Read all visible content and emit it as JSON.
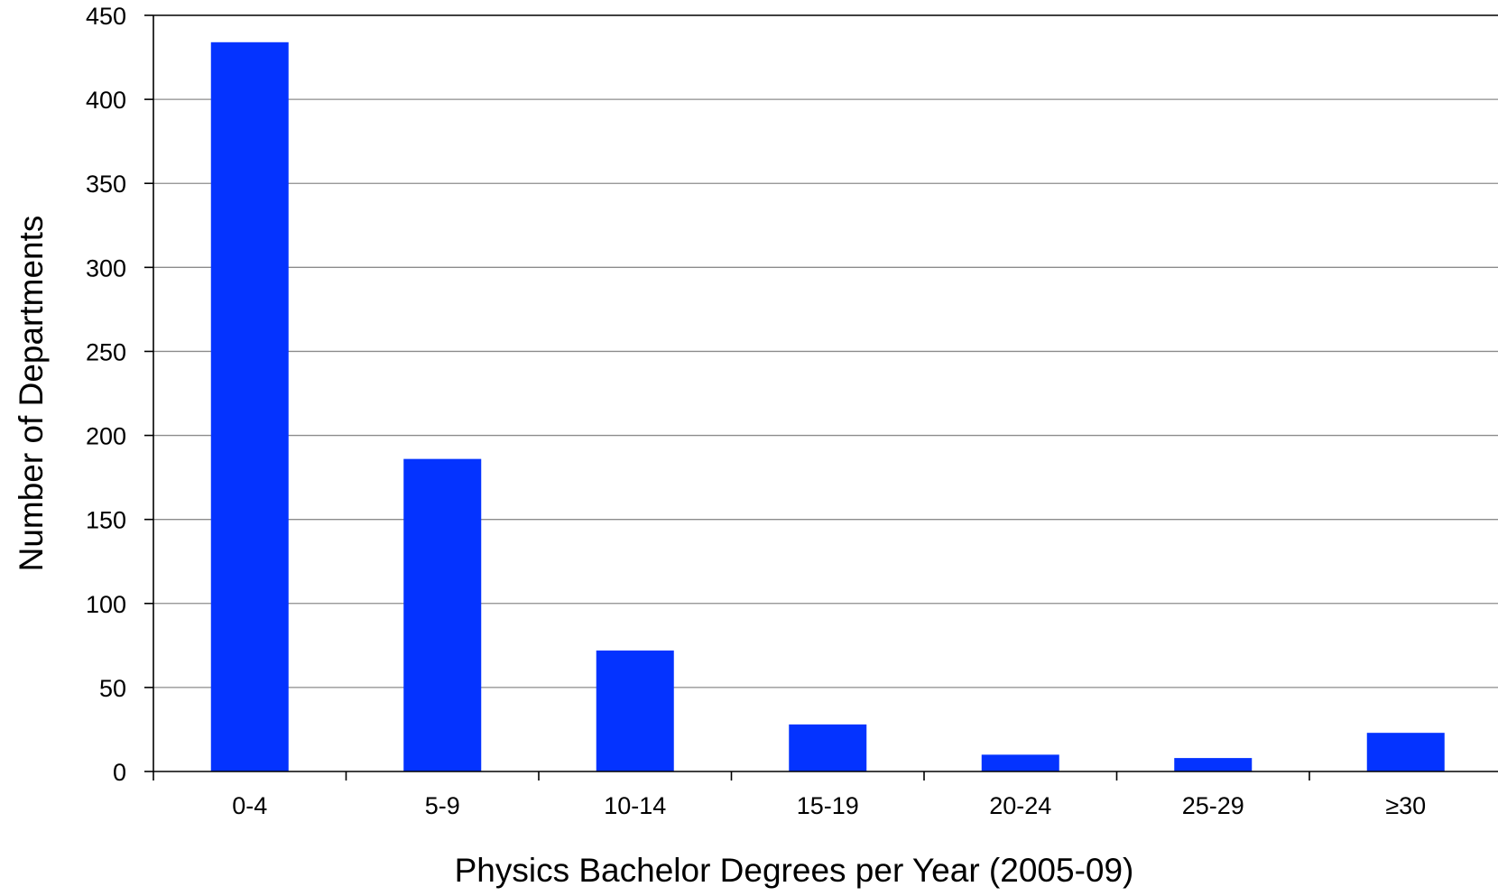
{
  "chart_data": {
    "type": "bar",
    "categories": [
      "0-4",
      "5-9",
      "10-14",
      "15-19",
      "20-24",
      "25-29",
      "≥30"
    ],
    "values": [
      434,
      186,
      72,
      28,
      10,
      8,
      23
    ],
    "title": "",
    "xlabel": "Physics Bachelor Degrees per Year (2005-09)",
    "ylabel": "Number of Departments",
    "ylim": [
      0,
      450
    ],
    "yticks": [
      0,
      50,
      100,
      150,
      200,
      250,
      300,
      350,
      400,
      450
    ],
    "grid": true,
    "legend": "none",
    "colors": {
      "bar": "#0433ff",
      "grid": "#8c8c8c",
      "axis": "#000000"
    }
  }
}
